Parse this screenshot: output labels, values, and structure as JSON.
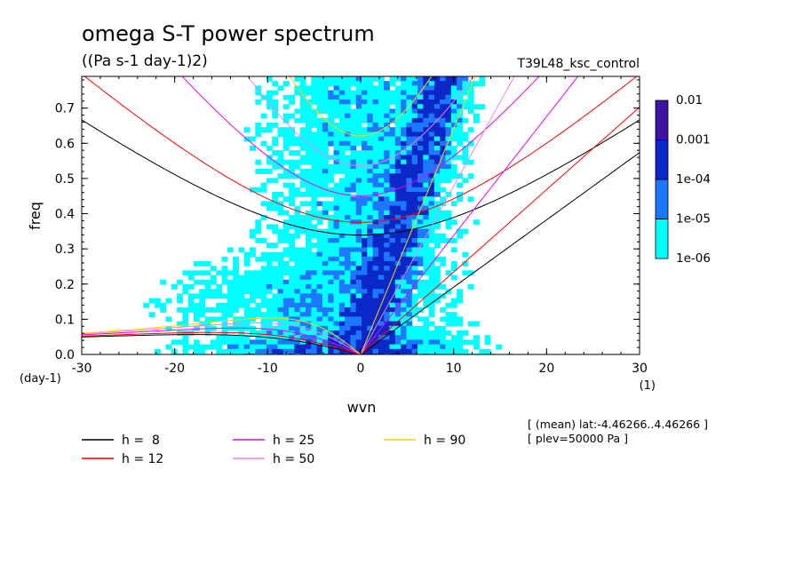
{
  "chart_data": {
    "type": "heatmap",
    "title": "omega S-T power spectrum",
    "subtitle": "((Pa s-1 day-1)2)",
    "run_label": "T39L48_ksc_control",
    "xlabel": "wvn",
    "ylabel": "freq",
    "x_unit": "(1)",
    "y_unit": "(day-1)",
    "xlim": [
      -30,
      30
    ],
    "ylim": [
      0,
      0.79
    ],
    "xticks": [
      -30,
      -20,
      -10,
      0,
      10,
      20,
      30
    ],
    "yticks": [
      0.0,
      0.1,
      0.2,
      0.3,
      0.4,
      0.5,
      0.6,
      0.7
    ],
    "xtick_labels": [
      "-30",
      "-20",
      "-10",
      "0",
      "10",
      "20",
      "30"
    ],
    "ytick_labels": [
      "0.0",
      "0.1",
      "0.2",
      "0.3",
      "0.4",
      "0.5",
      "0.6",
      "0.7"
    ],
    "colorbar": {
      "labels": [
        "0.01",
        "0.001",
        "1e-04",
        "1e-05",
        "1e-06"
      ],
      "levels": [
        1e-06,
        1e-05,
        0.0001,
        0.001,
        0.01
      ],
      "colors": [
        "#00ffff",
        "#1e78ff",
        "#0a28c8",
        "#3c14a0"
      ]
    },
    "series": [
      {
        "name": "h =  8",
        "equivalent_depth": 8,
        "color": "#000000"
      },
      {
        "name": "h = 12",
        "equivalent_depth": 12,
        "color": "#ff0000"
      },
      {
        "name": "h = 25",
        "equivalent_depth": 25,
        "color": "#ee00ee"
      },
      {
        "name": "h = 50",
        "equivalent_depth": 50,
        "color": "#ee82ee"
      },
      {
        "name": "h = 90",
        "equivalent_depth": 90,
        "color": "#ffd000"
      }
    ],
    "annotations": [
      "[ (mean) lat:-4.46266..4.46266 ]",
      "[ plev=50000 Pa ]"
    ]
  }
}
